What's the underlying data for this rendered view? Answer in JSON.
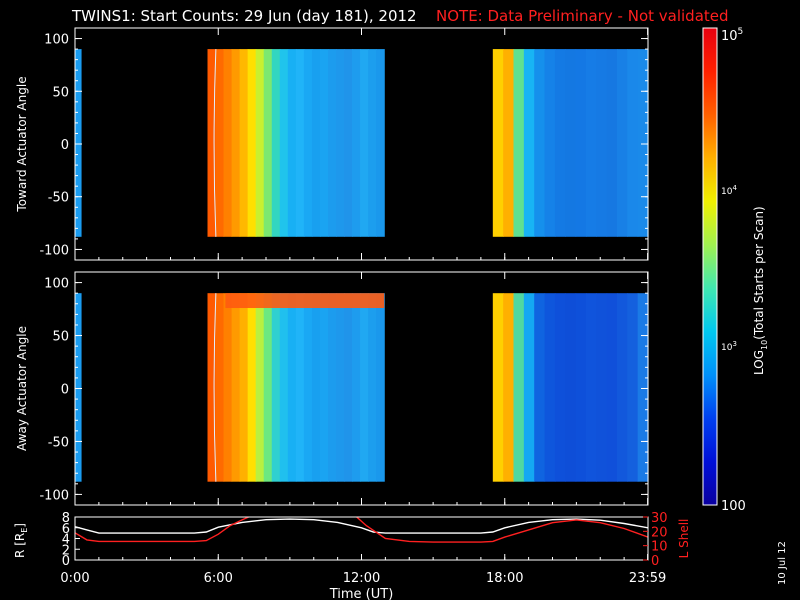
{
  "title": {
    "main": "TWINS1: Start Counts: 29 Jun (day 181), 2012",
    "note": "NOTE: Data Preliminary - Not validated",
    "note_color": "#ff2020"
  },
  "footer": {
    "date_stamp": "10 Jul 12"
  },
  "chart_data": [
    {
      "type": "heatmap",
      "panel": "top",
      "ylabel": "Toward Actuator Angle",
      "ylim": [
        -110,
        110
      ],
      "yticks": [
        100,
        50,
        0,
        -50,
        -100
      ],
      "xlim": [
        0,
        24
      ],
      "data_extent_y": [
        -88,
        90
      ],
      "segments": [
        {
          "start": 0.0,
          "end": 0.25,
          "colors": [
            "#1a9cf0"
          ]
        },
        {
          "start": 5.55,
          "end": 12.95,
          "colors": [
            "#ff5a00",
            "#ff6a00",
            "#ff8000",
            "#ff9a00",
            "#ffb800",
            "#ffe000",
            "#c8f030",
            "#7ce870",
            "#33d6c0",
            "#20c4ec",
            "#18b0f4",
            "#20b4f8",
            "#1aa8f4",
            "#18a0f0",
            "#1aa4f2",
            "#1c9cee",
            "#1e98ec",
            "#2094ea",
            "#1e9cee",
            "#20a8f2",
            "#1c9eee",
            "#1a98ec"
          ]
        },
        {
          "start": 17.5,
          "end": 24.0,
          "colors": [
            "#ffd000",
            "#ffb000",
            "#60e090",
            "#18b4f4",
            "#1590ec",
            "#1582e8",
            "#147ae4",
            "#1478e2",
            "#1478e4",
            "#167ce6",
            "#167ae4",
            "#1678e2",
            "#1880e6",
            "#1a88ea",
            "#1a8aea"
          ]
        }
      ]
    },
    {
      "type": "heatmap",
      "panel": "middle",
      "ylabel": "Away Actuator Angle",
      "ylim": [
        -110,
        110
      ],
      "yticks": [
        100,
        50,
        0,
        -50,
        -100
      ],
      "xlim": [
        0,
        24
      ],
      "data_extent_y": [
        -88,
        90
      ],
      "segments": [
        {
          "start": 0.0,
          "end": 0.25,
          "colors": [
            "#1a9cf0"
          ]
        },
        {
          "start": 5.55,
          "end": 12.95,
          "colors": [
            "#ff5a00",
            "#ff6a00",
            "#ff8000",
            "#ff9a00",
            "#ffb000",
            "#ffe000",
            "#b8f040",
            "#6ce880",
            "#30d0d0",
            "#20c0ee",
            "#18b0f4",
            "#20b4f8",
            "#1aa8f4",
            "#18a0f0",
            "#1aa4f2",
            "#1c9cee",
            "#1e98ec",
            "#2094ea",
            "#1e9cee",
            "#20a8f2",
            "#1c9eee",
            "#1a98ec"
          ]
        },
        {
          "start": 17.5,
          "end": 24.0,
          "colors": [
            "#ffd000",
            "#ffb000",
            "#50d8a0",
            "#14a8f2",
            "#0f64e0",
            "#0e56dc",
            "#0e50da",
            "#0e4ed8",
            "#0e50da",
            "#1054dc",
            "#1052da",
            "#1050da",
            "#1258dc",
            "#1460de",
            "#1a7ae6"
          ]
        }
      ],
      "top_band": {
        "start": 6.3,
        "end": 12.95,
        "angle_min": 76,
        "color": "#ff5a10"
      }
    },
    {
      "type": "line",
      "panel": "bottom",
      "xlabel": "Time (UT)",
      "ylabel_left": "R [R",
      "ylabel_left_sub": "E",
      "ylabel_left_close": "]",
      "ylabel_right": "L Shell",
      "ylim_left": [
        0,
        8
      ],
      "ylim_right": [
        0,
        30
      ],
      "yticks_left": [
        0,
        2,
        4,
        6,
        8
      ],
      "yticks_right": [
        0,
        10,
        20,
        30
      ],
      "xlim": [
        0,
        24
      ],
      "xticks": [
        0,
        6,
        12,
        18,
        23.983
      ],
      "xtick_labels": [
        "0:00",
        "6:00",
        "12:00",
        "18:00",
        "23:59"
      ],
      "series": [
        {
          "axis": "left",
          "color": "#ffffff",
          "x": [
            0,
            0.5,
            1,
            2,
            3,
            4,
            5,
            5.5,
            6,
            7,
            8,
            9,
            10,
            11,
            12,
            12.5,
            13,
            14,
            15,
            16,
            17,
            17.5,
            18,
            19,
            20,
            21,
            22,
            23,
            24
          ],
          "y": [
            6.2,
            5.6,
            5.0,
            5.0,
            5.0,
            5.0,
            5.0,
            5.2,
            6.1,
            7.0,
            7.5,
            7.6,
            7.5,
            7.0,
            6.0,
            5.2,
            5.0,
            5.0,
            5.0,
            5.0,
            5.0,
            5.2,
            6.0,
            7.0,
            7.5,
            7.6,
            7.4,
            6.8,
            6.0
          ]
        },
        {
          "axis": "right",
          "color": "#ff2020",
          "x": [
            0,
            0.5,
            1,
            2,
            3,
            4,
            5,
            5.5,
            6,
            6.5,
            7,
            7.4,
            7.6,
            11.6,
            11.8,
            12.2,
            13,
            14,
            15,
            16,
            17,
            17.5,
            18,
            19,
            20,
            21,
            22,
            23,
            24
          ],
          "y": [
            19,
            14,
            13,
            13,
            13,
            13,
            13,
            13.5,
            18,
            24,
            28,
            31,
            31,
            31,
            30,
            24,
            15,
            13,
            12.5,
            12.5,
            12.5,
            13,
            16,
            21,
            26,
            28,
            26,
            22,
            16
          ]
        }
      ]
    }
  ],
  "colorbar": {
    "label": "LOG",
    "label_sub": "10",
    "label_rest": "(Total Starts per Scan)",
    "top_tick": "10",
    "top_tick_exp": "5",
    "mid_tick1": "10",
    "mid_tick1_exp": "4",
    "mid_tick2": "10",
    "mid_tick2_exp": "3",
    "bottom_tick": "100",
    "stops": [
      "#0a00a0",
      "#0010d8",
      "#0040f0",
      "#0090f8",
      "#00c8f0",
      "#40e8b0",
      "#a0f050",
      "#f0f000",
      "#ffb000",
      "#ff6000",
      "#ff2000",
      "#e80010"
    ]
  }
}
